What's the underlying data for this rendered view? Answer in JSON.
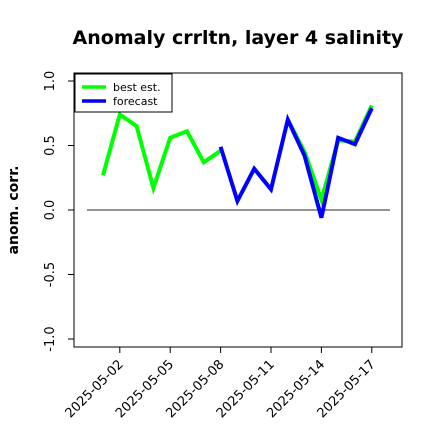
{
  "chart_data": {
    "type": "line",
    "title": "Anomaly crrltn, layer 4 salinity",
    "xlabel": "",
    "ylabel": "anom. corr.",
    "ylim": [
      -1.0,
      1.0
    ],
    "yticks": [
      "-1.0",
      "-0.5",
      "0.0",
      "0.5",
      "1.0"
    ],
    "ytick_values": [
      -1.0,
      -0.5,
      0.0,
      0.5,
      1.0
    ],
    "x": [
      "2025-05-01",
      "2025-05-02",
      "2025-05-03",
      "2025-05-04",
      "2025-05-05",
      "2025-05-06",
      "2025-05-07",
      "2025-05-08",
      "2025-05-09",
      "2025-05-10",
      "2025-05-11",
      "2025-05-12",
      "2025-05-13",
      "2025-05-14",
      "2025-05-15",
      "2025-05-16",
      "2025-05-17"
    ],
    "xticks": [
      "2025-05-02",
      "2025-05-05",
      "2025-05-08",
      "2025-05-11",
      "2025-05-14",
      "2025-05-17"
    ],
    "xtick_colors": [
      "#000000",
      "#000000",
      "#228B22",
      "#000000",
      "#000000",
      "#000000"
    ],
    "series": [
      {
        "name": "best est.",
        "color": "#00ff00",
        "values": [
          0.27,
          0.74,
          0.65,
          0.17,
          0.56,
          0.61,
          0.37,
          0.46,
          null,
          null,
          null,
          0.7,
          0.45,
          0.08,
          0.54,
          0.53,
          0.81
        ]
      },
      {
        "name": "forecast",
        "color": "#0000ff",
        "values": [
          null,
          null,
          null,
          null,
          null,
          null,
          null,
          0.49,
          0.07,
          0.32,
          0.16,
          0.7,
          0.42,
          -0.06,
          0.56,
          0.51,
          0.79
        ]
      }
    ],
    "reference_line": 0.0,
    "legend_position": "top-left",
    "grid": false
  }
}
